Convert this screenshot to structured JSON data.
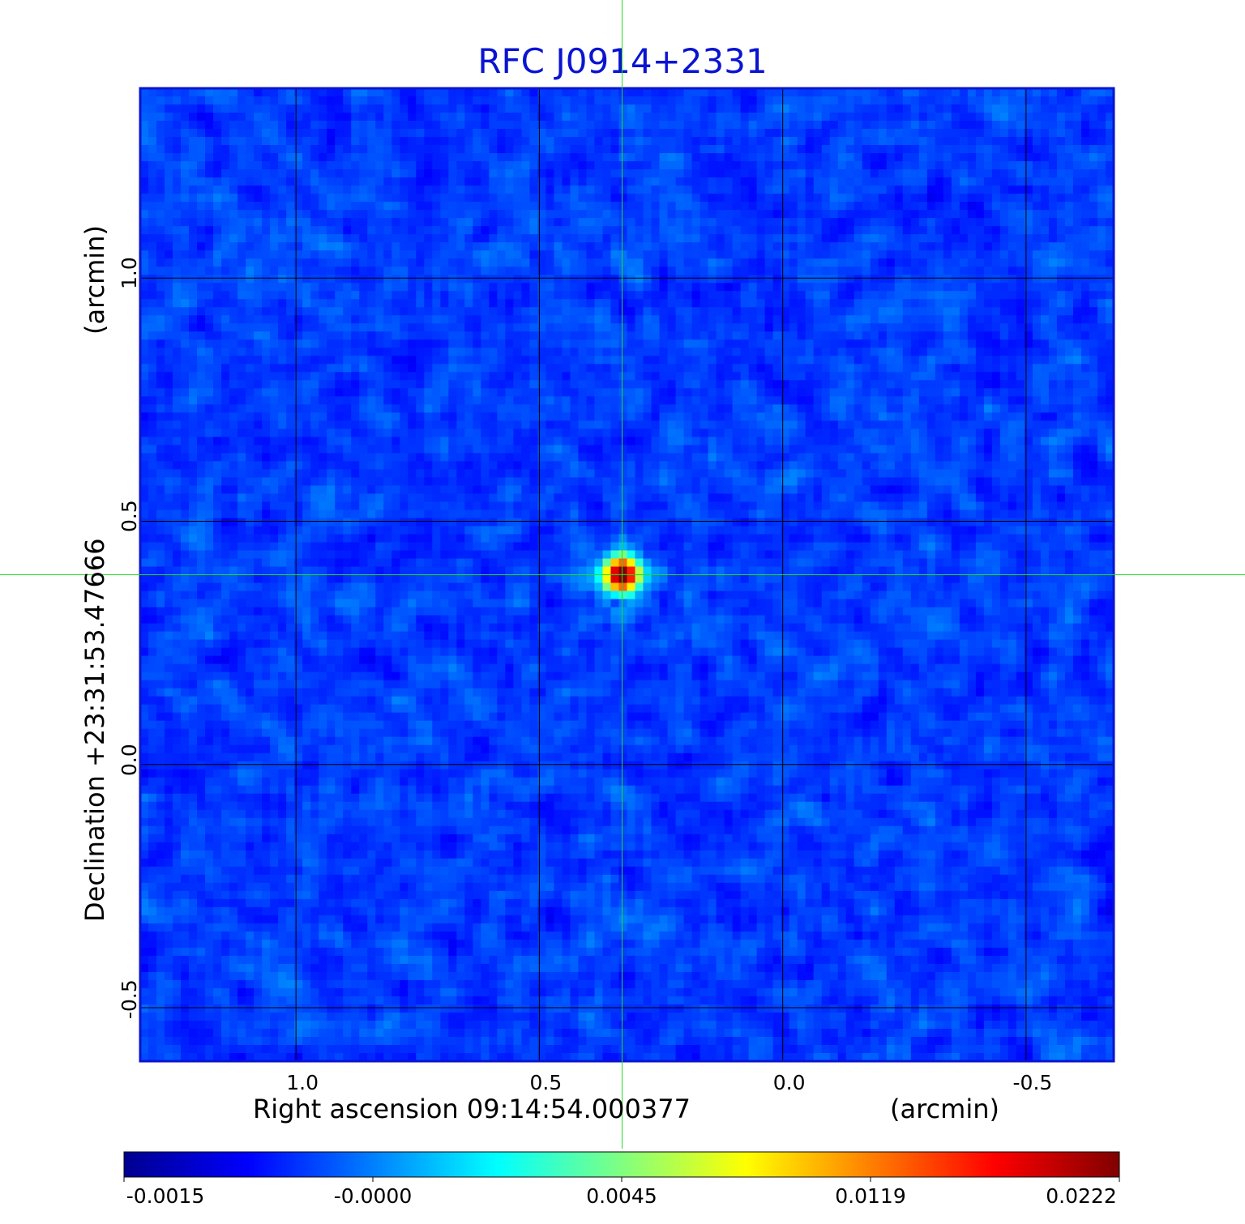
{
  "chart_data": {
    "type": "heatmap",
    "title": "RFC J0914+2331",
    "xlabel": "Right ascension  09:14:54.000377",
    "xunit": "(arcmin)",
    "ylabel": "Declination  +23:31:53.47666",
    "yunit": "(arcmin)",
    "xlim": [
      1.32,
      -0.68
    ],
    "ylim": [
      -0.61,
      1.39
    ],
    "xticks": [
      "1.0",
      "0.5",
      "0.0",
      "-0.5"
    ],
    "xtick_values": [
      1.0,
      0.5,
      0.0,
      -0.5
    ],
    "yticks": [
      "-0.5",
      "0.0",
      "0.5",
      "1.0"
    ],
    "ytick_values": [
      -0.5,
      0.0,
      0.5,
      1.0
    ],
    "grid": true,
    "crosshair": {
      "x": 0.33,
      "y": 0.39
    },
    "source_peak": {
      "x": 0.33,
      "y": 0.39,
      "value": 0.0222
    },
    "background_level": -0.0004,
    "colormap": "jet",
    "colorbar": {
      "ticks": [
        "-0.0015",
        "-0.0000",
        "0.0045",
        "0.0119",
        "0.0222"
      ]
    },
    "colors": {
      "title": "#0a14d0",
      "frame": "#0a14d0",
      "grid": "#000000",
      "crosshair": "#22dd22"
    }
  }
}
